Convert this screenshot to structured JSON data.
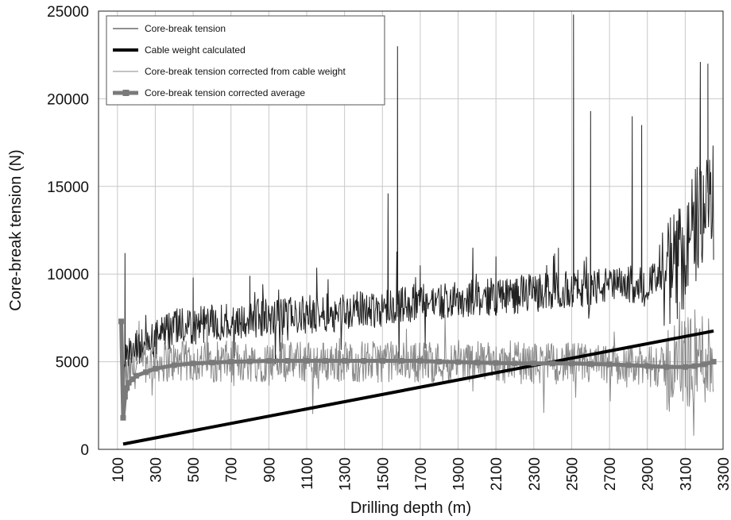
{
  "chart_data": {
    "type": "line",
    "xlabel": "Drilling depth  (m)",
    "ylabel": "Core-break tension (N)",
    "xlim": [
      0,
      3300
    ],
    "ylim": [
      0,
      25000
    ],
    "x_ticks": [
      100,
      300,
      500,
      700,
      900,
      1100,
      1300,
      1500,
      1700,
      1900,
      2100,
      2300,
      2500,
      2700,
      2900,
      3100,
      3300
    ],
    "y_ticks": [
      0,
      5000,
      10000,
      15000,
      20000,
      25000
    ],
    "x_tick_labels": [
      "100",
      "300",
      "500",
      "700",
      "900",
      "1100",
      "1300",
      "1500",
      "1700",
      "1900",
      "2100",
      "2300",
      "2500",
      "2700",
      "2900",
      "3100",
      "3300"
    ],
    "y_tick_labels": [
      "0",
      "5000",
      "10000",
      "15000",
      "20000",
      "25000"
    ],
    "grid": true,
    "legend_position": "top-left",
    "series": [
      {
        "name": "Core-break tension",
        "style": "thin-black",
        "color": "#222222",
        "x": [
          130,
          160,
          200,
          250,
          300,
          350,
          400,
          450,
          500,
          550,
          600,
          650,
          700,
          750,
          800,
          850,
          900,
          950,
          1000,
          1050,
          1100,
          1150,
          1200,
          1250,
          1300,
          1350,
          1400,
          1450,
          1500,
          1550,
          1600,
          1650,
          1700,
          1750,
          1800,
          1850,
          1900,
          1950,
          2000,
          2050,
          2100,
          2150,
          2200,
          2250,
          2300,
          2350,
          2400,
          2450,
          2500,
          2550,
          2600,
          2650,
          2700,
          2750,
          2800,
          2850,
          2900,
          2950,
          3000,
          3050,
          3100,
          3150,
          3200,
          3250
        ],
        "y": [
          5000,
          5300,
          5700,
          6000,
          6300,
          6600,
          6800,
          7000,
          7000,
          7100,
          7200,
          7300,
          7300,
          7400,
          7400,
          7500,
          7500,
          7500,
          7600,
          7600,
          7700,
          7700,
          7800,
          7800,
          7900,
          7900,
          8000,
          8000,
          8100,
          8200,
          8300,
          8300,
          8400,
          8400,
          8500,
          8500,
          8500,
          8600,
          8600,
          8700,
          8700,
          8800,
          8800,
          8900,
          8900,
          9000,
          9000,
          9100,
          9100,
          9200,
          9200,
          9300,
          9300,
          9300,
          9400,
          9400,
          9500,
          9600,
          9700,
          10300,
          11500,
          12500,
          13500,
          14000
        ],
        "spikes": [
          [
            140,
            11200
          ],
          [
            500,
            9800
          ],
          [
            800,
            9900
          ],
          [
            1530,
            14600
          ],
          [
            1580,
            23000
          ],
          [
            1700,
            10500
          ],
          [
            2100,
            11000
          ],
          [
            2430,
            11500
          ],
          [
            2510,
            24800
          ],
          [
            2600,
            19300
          ],
          [
            2820,
            19000
          ],
          [
            2870,
            18500
          ],
          [
            3180,
            22100
          ],
          [
            3220,
            22000
          ]
        ]
      },
      {
        "name": "Cable weight calculated",
        "style": "thick-black",
        "color": "#000000",
        "x": [
          130,
          3250
        ],
        "y": [
          300,
          6750
        ]
      },
      {
        "name": "Core-break tension corrected from cable weight",
        "style": "thin-gray",
        "color": "#8a8a8a",
        "x": [
          130,
          160,
          200,
          250,
          300,
          350,
          400,
          450,
          500,
          550,
          600,
          650,
          700,
          750,
          800,
          850,
          900,
          950,
          1000,
          1050,
          1100,
          1150,
          1200,
          1250,
          1300,
          1350,
          1400,
          1450,
          1500,
          1550,
          1600,
          1650,
          1700,
          1750,
          1800,
          1850,
          1900,
          1950,
          2000,
          2050,
          2100,
          2150,
          2200,
          2250,
          2300,
          2350,
          2400,
          2450,
          2500,
          2550,
          2600,
          2650,
          2700,
          2750,
          2800,
          2850,
          2900,
          2950,
          3000,
          3050,
          3100,
          3150,
          3200,
          3250
        ],
        "y": [
          3800,
          4300,
          4700,
          4900,
          5000,
          5000,
          5000,
          5000,
          5000,
          5000,
          5000,
          5000,
          5000,
          5000,
          5000,
          5000,
          5000,
          5000,
          5000,
          5000,
          5000,
          5000,
          5000,
          5000,
          5000,
          5000,
          5000,
          5000,
          5000,
          5000,
          5000,
          5000,
          5000,
          5000,
          5000,
          5000,
          5000,
          5000,
          5000,
          5000,
          4900,
          4900,
          4900,
          4900,
          4900,
          4900,
          4900,
          4900,
          4900,
          4900,
          4800,
          4800,
          4800,
          4800,
          4700,
          4700,
          4700,
          4700,
          4600,
          4800,
          5000,
          5200,
          5300,
          5200
        ]
      },
      {
        "name": "Core-break tension corrected average",
        "style": "thick-gray-square",
        "color": "#7a7a7a",
        "x": [
          120,
          130,
          140,
          150,
          160,
          180,
          200,
          250,
          300,
          400,
          500,
          600,
          700,
          800,
          900,
          1000,
          1100,
          1200,
          1300,
          1400,
          1500,
          1600,
          1700,
          1800,
          1900,
          2000,
          2100,
          2200,
          2300,
          2400,
          2500,
          2600,
          2700,
          2800,
          2900,
          3000,
          3100,
          3150,
          3200,
          3250
        ],
        "y": [
          7300,
          1800,
          3000,
          3500,
          3800,
          4000,
          4200,
          4400,
          4600,
          4800,
          4900,
          4950,
          5000,
          5020,
          5050,
          5050,
          5050,
          5050,
          5050,
          5050,
          5050,
          5050,
          5050,
          5000,
          4980,
          4950,
          4930,
          4900,
          4900,
          4900,
          4900,
          4870,
          4850,
          4800,
          4750,
          4700,
          4700,
          4750,
          4850,
          5000
        ]
      }
    ]
  }
}
